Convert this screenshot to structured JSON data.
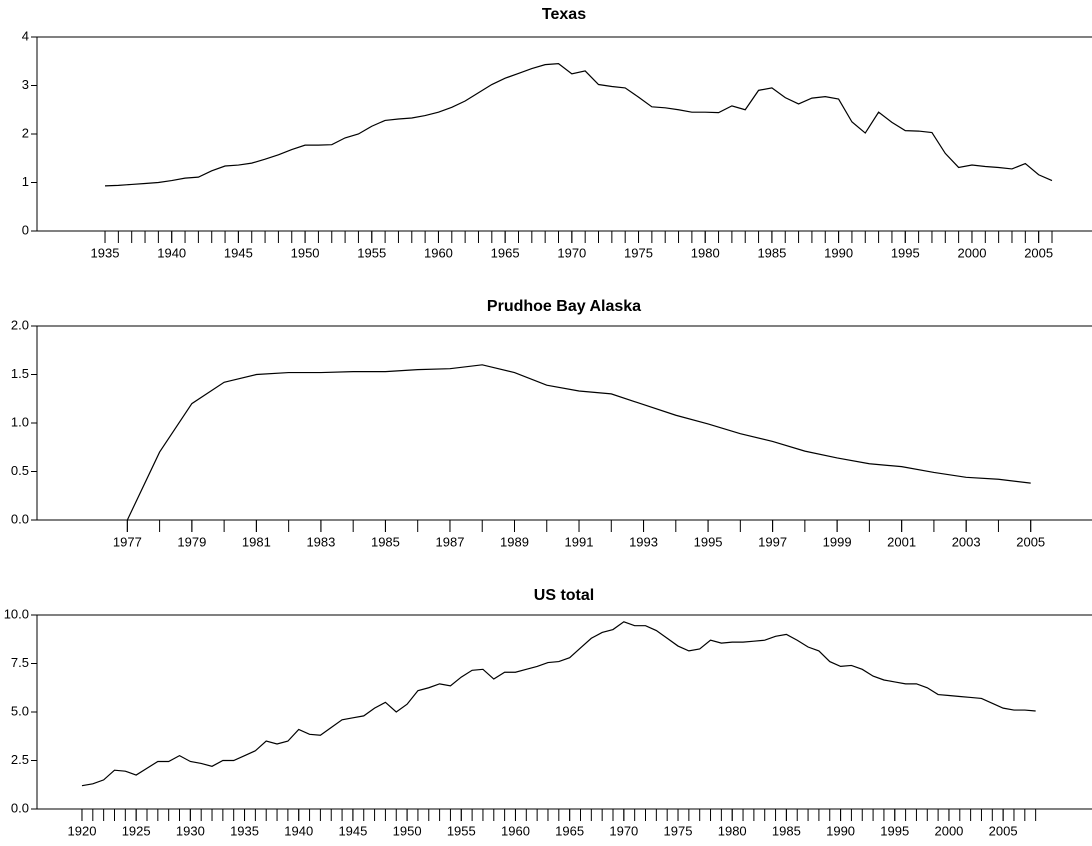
{
  "chart_data": [
    {
      "type": "line",
      "title": "Texas",
      "color": "#000000",
      "minor_ticks_at_x": true,
      "x": [
        1935,
        1936,
        1937,
        1938,
        1939,
        1940,
        1941,
        1942,
        1943,
        1944,
        1945,
        1946,
        1947,
        1948,
        1949,
        1950,
        1951,
        1952,
        1953,
        1954,
        1955,
        1956,
        1957,
        1958,
        1959,
        1960,
        1961,
        1962,
        1963,
        1964,
        1965,
        1966,
        1967,
        1968,
        1969,
        1970,
        1971,
        1972,
        1973,
        1974,
        1975,
        1976,
        1977,
        1978,
        1979,
        1980,
        1981,
        1982,
        1983,
        1984,
        1985,
        1986,
        1987,
        1988,
        1989,
        1990,
        1991,
        1992,
        1993,
        1994,
        1995,
        1996,
        1997,
        1998,
        1999,
        2000,
        2001,
        2002,
        2003,
        2004,
        2005,
        2006
      ],
      "values": [
        0.93,
        0.94,
        0.96,
        0.98,
        1.0,
        1.04,
        1.09,
        1.11,
        1.24,
        1.34,
        1.36,
        1.4,
        1.48,
        1.57,
        1.68,
        1.77,
        1.77,
        1.78,
        1.92,
        2.0,
        2.16,
        2.28,
        2.31,
        2.33,
        2.38,
        2.45,
        2.55,
        2.68,
        2.85,
        3.02,
        3.15,
        3.25,
        3.35,
        3.43,
        3.45,
        3.24,
        3.3,
        3.02,
        2.98,
        2.95,
        2.76,
        2.56,
        2.54,
        2.5,
        2.45,
        2.45,
        2.44,
        2.58,
        2.5,
        2.9,
        2.95,
        2.75,
        2.62,
        2.74,
        2.77,
        2.72,
        2.25,
        2.02,
        2.45,
        2.24,
        2.07,
        2.06,
        2.03,
        1.6,
        1.31,
        1.36,
        1.33,
        1.31,
        1.28,
        1.39,
        1.16,
        1.04
      ],
      "xlim": [
        1929.9,
        2009
      ],
      "xticks": [
        1935,
        1940,
        1945,
        1950,
        1955,
        1960,
        1965,
        1970,
        1975,
        1980,
        1985,
        1990,
        1995,
        2000,
        2005
      ],
      "ylim": [
        0,
        4
      ],
      "yticks": [
        0,
        1,
        2,
        3,
        4
      ]
    },
    {
      "type": "line",
      "title": "Prudhoe Bay Alaska",
      "color": "#000000",
      "minor_ticks_at_x": true,
      "x": [
        1977,
        1978,
        1979,
        1980,
        1981,
        1982,
        1983,
        1984,
        1985,
        1986,
        1987,
        1988,
        1989,
        1990,
        1991,
        1992,
        1993,
        1994,
        1995,
        1996,
        1997,
        1998,
        1999,
        2000,
        2001,
        2002,
        2003,
        2004,
        2005
      ],
      "values": [
        0,
        0.7,
        1.2,
        1.42,
        1.5,
        1.52,
        1.52,
        1.53,
        1.53,
        1.55,
        1.56,
        1.6,
        1.52,
        1.39,
        1.33,
        1.3,
        1.19,
        1.08,
        0.99,
        0.89,
        0.81,
        0.71,
        0.64,
        0.58,
        0.55,
        0.49,
        0.44,
        0.42,
        0.38
      ],
      "xlim": [
        1974.2,
        2006.9
      ],
      "xticks": [
        1977,
        1979,
        1981,
        1983,
        1985,
        1987,
        1989,
        1991,
        1993,
        1995,
        1997,
        1999,
        2001,
        2003,
        2005
      ],
      "ylim": [
        0,
        2
      ],
      "yticks": [
        {
          "value": 0,
          "label": "0.0"
        },
        {
          "value": 0.5,
          "label": "0.5"
        },
        {
          "value": 1,
          "label": "1.0"
        },
        {
          "value": 1.5,
          "label": "1.5"
        },
        {
          "value": 2,
          "label": "2.0"
        }
      ]
    },
    {
      "type": "line",
      "title": "US total",
      "color": "#000000",
      "minor_ticks_at_x": true,
      "x": [
        1920,
        1921,
        1922,
        1923,
        1924,
        1925,
        1926,
        1927,
        1928,
        1929,
        1930,
        1931,
        1932,
        1933,
        1934,
        1935,
        1936,
        1937,
        1938,
        1939,
        1940,
        1941,
        1942,
        1943,
        1944,
        1945,
        1946,
        1947,
        1948,
        1949,
        1950,
        1951,
        1952,
        1953,
        1954,
        1955,
        1956,
        1957,
        1958,
        1959,
        1960,
        1961,
        1962,
        1963,
        1964,
        1965,
        1966,
        1967,
        1968,
        1969,
        1970,
        1971,
        1972,
        1973,
        1974,
        1975,
        1976,
        1977,
        1978,
        1979,
        1980,
        1981,
        1982,
        1983,
        1984,
        1985,
        1986,
        1987,
        1988,
        1989,
        1990,
        1991,
        1992,
        1993,
        1994,
        1995,
        1996,
        1997,
        1998,
        1999,
        2000,
        2001,
        2002,
        2003,
        2004,
        2005,
        2006,
        2007,
        2008
      ],
      "values": [
        1.2,
        1.3,
        1.5,
        2.0,
        1.95,
        1.75,
        2.1,
        2.45,
        2.45,
        2.75,
        2.45,
        2.35,
        2.2,
        2.5,
        2.5,
        2.75,
        3.0,
        3.5,
        3.35,
        3.5,
        4.1,
        3.85,
        3.8,
        4.2,
        4.6,
        4.7,
        4.8,
        5.2,
        5.5,
        5.0,
        5.4,
        6.1,
        6.25,
        6.45,
        6.35,
        6.8,
        7.15,
        7.2,
        6.7,
        7.05,
        7.05,
        7.2,
        7.35,
        7.55,
        7.6,
        7.8,
        8.3,
        8.8,
        9.1,
        9.25,
        9.65,
        9.45,
        9.45,
        9.2,
        8.8,
        8.4,
        8.15,
        8.25,
        8.7,
        8.55,
        8.6,
        8.6,
        8.65,
        8.7,
        8.9,
        9.0,
        8.7,
        8.35,
        8.15,
        7.6,
        7.35,
        7.4,
        7.2,
        6.85,
        6.65,
        6.55,
        6.45,
        6.45,
        6.25,
        5.9,
        5.85,
        5.8,
        5.75,
        5.7,
        5.45,
        5.2,
        5.1,
        5.1,
        5.05
      ],
      "xlim": [
        1915.85,
        2013.2
      ],
      "xticks": [
        1920,
        1925,
        1930,
        1935,
        1940,
        1945,
        1950,
        1955,
        1960,
        1965,
        1970,
        1975,
        1980,
        1985,
        1990,
        1995,
        2000,
        2005
      ],
      "ylim": [
        0,
        10
      ],
      "yticks": [
        {
          "value": 0,
          "label": "0.0"
        },
        {
          "value": 2.5,
          "label": "2.5"
        },
        {
          "value": 5,
          "label": "5.0"
        },
        {
          "value": 7.5,
          "label": "7.5"
        },
        {
          "value": 10,
          "label": "10.0"
        }
      ]
    }
  ]
}
